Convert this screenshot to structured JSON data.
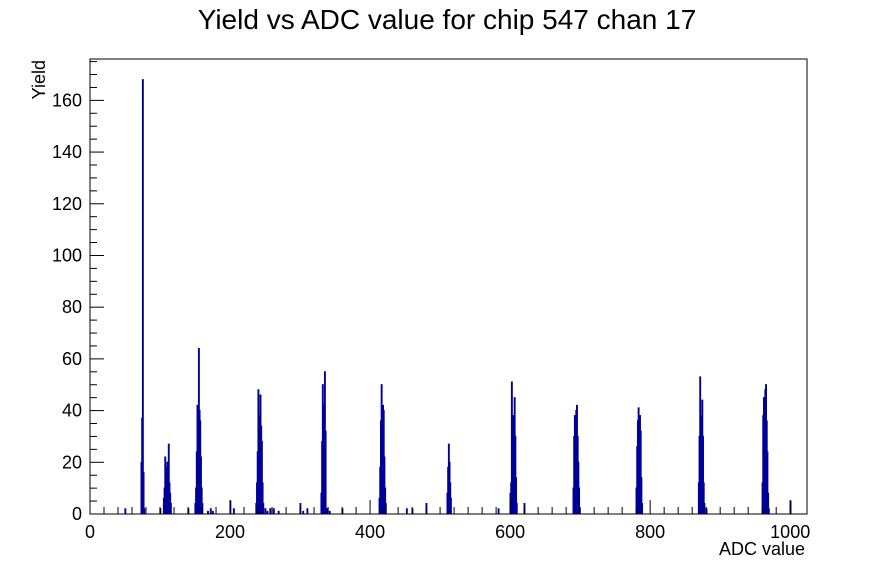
{
  "chart_data": {
    "type": "bar",
    "title": "Yield vs ADC value for chip 547 chan 17",
    "xlabel": "ADC value",
    "ylabel": "Yield",
    "xlim": [
      0,
      1024
    ],
    "ylim": [
      0,
      176
    ],
    "x_ticks": [
      0,
      200,
      400,
      600,
      800,
      1000
    ],
    "y_ticks": [
      0,
      20,
      40,
      60,
      80,
      100,
      120,
      140,
      160
    ],
    "grid": false,
    "legend": "none",
    "colors": {
      "bars": "#000099",
      "axes": "#000000",
      "background": "#ffffff"
    },
    "bin_width": 1,
    "bins": [
      [
        50,
        2
      ],
      [
        73,
        20
      ],
      [
        74,
        37
      ],
      [
        75,
        168
      ],
      [
        76,
        16
      ],
      [
        77,
        2
      ],
      [
        100,
        2
      ],
      [
        105,
        6
      ],
      [
        106,
        10
      ],
      [
        107,
        22
      ],
      [
        108,
        18
      ],
      [
        109,
        14
      ],
      [
        110,
        20
      ],
      [
        111,
        18
      ],
      [
        112,
        27
      ],
      [
        113,
        12
      ],
      [
        114,
        8
      ],
      [
        115,
        4
      ],
      [
        140,
        2
      ],
      [
        150,
        4
      ],
      [
        151,
        10
      ],
      [
        152,
        24
      ],
      [
        153,
        42
      ],
      [
        154,
        38
      ],
      [
        155,
        64
      ],
      [
        156,
        40
      ],
      [
        157,
        36
      ],
      [
        158,
        22
      ],
      [
        159,
        10
      ],
      [
        160,
        4
      ],
      [
        168,
        1
      ],
      [
        172,
        2
      ],
      [
        175,
        1
      ],
      [
        200,
        5
      ],
      [
        205,
        2
      ],
      [
        237,
        4
      ],
      [
        238,
        12
      ],
      [
        239,
        24
      ],
      [
        240,
        48
      ],
      [
        241,
        30
      ],
      [
        242,
        38
      ],
      [
        243,
        46
      ],
      [
        244,
        34
      ],
      [
        245,
        28
      ],
      [
        246,
        12
      ],
      [
        247,
        4
      ],
      [
        250,
        2
      ],
      [
        253,
        1
      ],
      [
        257,
        2
      ],
      [
        262,
        2
      ],
      [
        269,
        1
      ],
      [
        300,
        4
      ],
      [
        304,
        1
      ],
      [
        310,
        2
      ],
      [
        330,
        8
      ],
      [
        331,
        28
      ],
      [
        332,
        50
      ],
      [
        333,
        42
      ],
      [
        334,
        38
      ],
      [
        335,
        55
      ],
      [
        336,
        32
      ],
      [
        337,
        2
      ],
      [
        339,
        2
      ],
      [
        342,
        1
      ],
      [
        360,
        2
      ],
      [
        413,
        6
      ],
      [
        414,
        18
      ],
      [
        415,
        36
      ],
      [
        416,
        50
      ],
      [
        417,
        40
      ],
      [
        418,
        42
      ],
      [
        419,
        40
      ],
      [
        420,
        22
      ],
      [
        421,
        10
      ],
      [
        422,
        4
      ],
      [
        452,
        2
      ],
      [
        460,
        2
      ],
      [
        480,
        4
      ],
      [
        510,
        8
      ],
      [
        511,
        18
      ],
      [
        512,
        27
      ],
      [
        513,
        20
      ],
      [
        514,
        12
      ],
      [
        515,
        6
      ],
      [
        583,
        2
      ],
      [
        600,
        8
      ],
      [
        601,
        12
      ],
      [
        602,
        51
      ],
      [
        603,
        36
      ],
      [
        604,
        38
      ],
      [
        605,
        32
      ],
      [
        606,
        45
      ],
      [
        607,
        30
      ],
      [
        608,
        14
      ],
      [
        609,
        4
      ],
      [
        620,
        4
      ],
      [
        690,
        10
      ],
      [
        691,
        30
      ],
      [
        692,
        38
      ],
      [
        693,
        32
      ],
      [
        694,
        40
      ],
      [
        695,
        42
      ],
      [
        696,
        30
      ],
      [
        697,
        20
      ],
      [
        698,
        10
      ],
      [
        699,
        2
      ],
      [
        780,
        10
      ],
      [
        781,
        26
      ],
      [
        782,
        36
      ],
      [
        783,
        41
      ],
      [
        784,
        38
      ],
      [
        785,
        38
      ],
      [
        786,
        32
      ],
      [
        787,
        14
      ],
      [
        788,
        4
      ],
      [
        869,
        12
      ],
      [
        870,
        30
      ],
      [
        871,
        53
      ],
      [
        872,
        38
      ],
      [
        873,
        34
      ],
      [
        874,
        44
      ],
      [
        875,
        30
      ],
      [
        876,
        12
      ],
      [
        877,
        4
      ],
      [
        880,
        2
      ],
      [
        960,
        12
      ],
      [
        961,
        38
      ],
      [
        962,
        45
      ],
      [
        963,
        40
      ],
      [
        964,
        48
      ],
      [
        965,
        50
      ],
      [
        966,
        36
      ],
      [
        967,
        24
      ],
      [
        968,
        8
      ],
      [
        969,
        2
      ],
      [
        1000,
        5
      ]
    ]
  }
}
